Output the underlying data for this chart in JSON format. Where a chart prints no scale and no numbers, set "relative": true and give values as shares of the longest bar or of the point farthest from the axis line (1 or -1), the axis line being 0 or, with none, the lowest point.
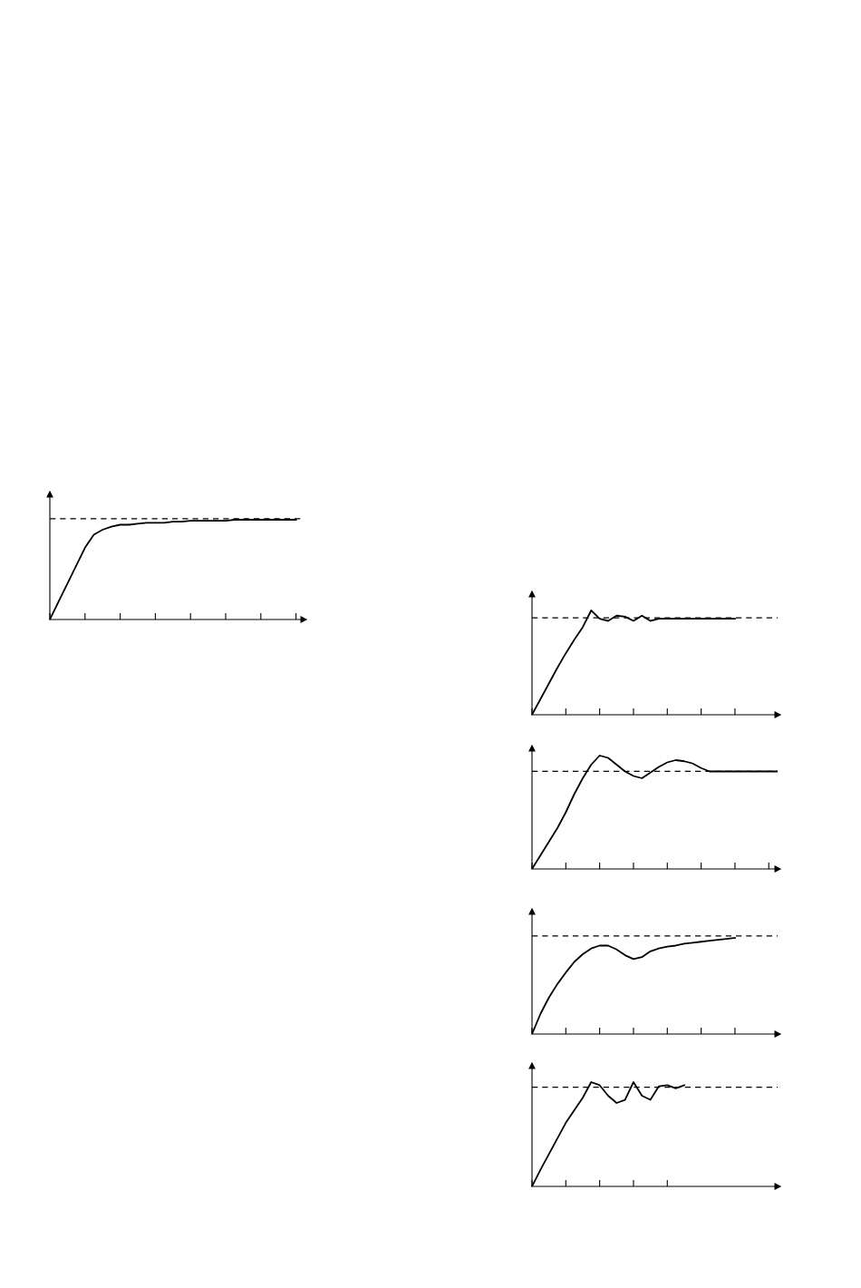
{
  "chart_data": [
    {
      "type": "line",
      "relative": true,
      "categories": [
        null,
        null,
        null,
        null,
        null,
        null,
        null,
        null,
        null,
        null,
        null,
        null,
        null,
        null,
        null,
        null,
        null,
        null,
        null,
        null,
        null,
        null,
        null,
        null,
        null,
        null,
        null,
        null,
        null
      ],
      "series": [
        {
          "color": "#000000",
          "values": [
            0,
            0.18,
            0.36,
            0.54,
            0.72,
            0.85,
            0.9,
            0.93,
            0.95,
            0.95,
            0.96,
            0.97,
            0.97,
            0.97,
            0.98,
            0.98,
            0.99,
            0.99,
            0.99,
            0.99,
            0.99,
            1,
            1,
            1,
            1,
            1,
            1,
            1,
            1
          ]
        }
      ],
      "ref_lines": [
        {
          "axis": "y",
          "value": 1.01,
          "color": "#000000",
          "line_style": "dashed"
        }
      ]
    },
    {
      "type": "line",
      "relative": true,
      "categories": [
        null,
        null,
        null,
        null,
        null,
        null,
        null,
        null,
        null,
        null,
        null,
        null,
        null,
        null,
        null,
        null,
        null,
        null,
        null,
        null,
        null,
        null,
        null,
        null,
        null
      ],
      "series": [
        {
          "color": "#000000",
          "values": [
            0,
            0.15,
            0.3,
            0.45,
            0.59,
            0.72,
            0.84,
            1,
            0.92,
            0.9,
            0.95,
            0.94,
            0.9,
            0.95,
            0.9,
            0.92,
            0.92,
            0.92,
            0.92,
            0.92,
            0.92,
            0.92,
            0.92,
            0.92,
            0.92
          ]
        }
      ],
      "ref_lines": [
        {
          "axis": "y",
          "value": 0.93,
          "color": "#000000",
          "line_style": "dashed"
        }
      ]
    },
    {
      "type": "line",
      "relative": true,
      "categories": [
        null,
        null,
        null,
        null,
        null,
        null,
        null,
        null,
        null,
        null,
        null,
        null,
        null,
        null,
        null,
        null,
        null,
        null,
        null,
        null,
        null,
        null,
        null,
        null,
        null,
        null,
        null,
        null,
        null,
        null
      ],
      "series": [
        {
          "color": "#000000",
          "values": [
            0,
            0.12,
            0.24,
            0.36,
            0.5,
            0.66,
            0.8,
            0.92,
            1,
            0.98,
            0.92,
            0.86,
            0.82,
            0.8,
            0.85,
            0.9,
            0.94,
            0.96,
            0.95,
            0.93,
            0.89,
            0.86,
            0.86,
            0.86,
            0.86,
            0.86,
            0.86,
            0.86,
            0.86,
            0.86
          ]
        }
      ],
      "ref_lines": [
        {
          "axis": "y",
          "value": 0.86,
          "color": "#000000",
          "line_style": "dashed"
        }
      ]
    },
    {
      "type": "line",
      "relative": true,
      "categories": [
        null,
        null,
        null,
        null,
        null,
        null,
        null,
        null,
        null,
        null,
        null,
        null,
        null,
        null,
        null,
        null,
        null,
        null,
        null,
        null,
        null,
        null,
        null,
        null,
        null
      ],
      "series": [
        {
          "color": "#000000",
          "values": [
            0,
            0.21,
            0.38,
            0.52,
            0.64,
            0.75,
            0.83,
            0.89,
            0.92,
            0.92,
            0.88,
            0.82,
            0.78,
            0.8,
            0.86,
            0.89,
            0.91,
            0.92,
            0.94,
            0.95,
            0.96,
            0.97,
            0.98,
            0.99,
            1
          ]
        }
      ],
      "ref_lines": [
        {
          "axis": "y",
          "value": 1.02,
          "color": "#000000",
          "line_style": "dashed"
        }
      ]
    },
    {
      "type": "line",
      "relative": true,
      "categories": [
        null,
        null,
        null,
        null,
        null,
        null,
        null,
        null,
        null,
        null,
        null,
        null,
        null,
        null,
        null,
        null,
        null,
        null,
        null
      ],
      "series": [
        {
          "color": "#000000",
          "values": [
            0,
            0.16,
            0.31,
            0.46,
            0.61,
            0.73,
            0.85,
            1,
            0.97,
            0.87,
            0.8,
            0.83,
            1,
            0.87,
            0.83,
            0.96,
            0.97,
            0.94,
            0.97
          ]
        }
      ],
      "ref_lines": [
        {
          "axis": "y",
          "value": 0.95,
          "color": "#000000",
          "line_style": "dashed"
        }
      ]
    }
  ]
}
